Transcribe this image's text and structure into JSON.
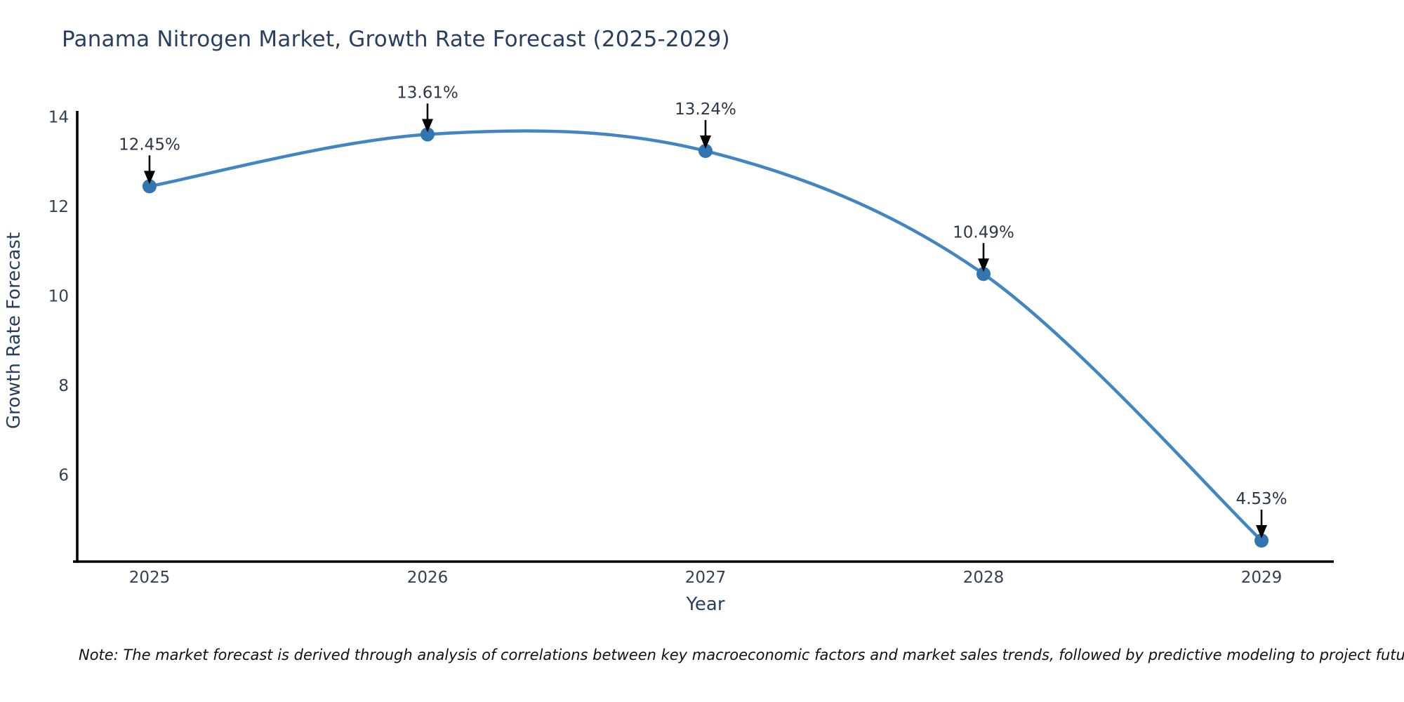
{
  "note": "Note: The market forecast is derived through analysis of correlations between key macroeconomic factors and market sales trends, followed by predictive modeling to project future sales.",
  "chart_data": {
    "type": "line",
    "title": "Panama Nitrogen Market, Growth Rate Forecast (2025-2029)",
    "xlabel": "Year",
    "ylabel": "Growth Rate Forecast",
    "x": [
      2025,
      2026,
      2027,
      2028,
      2029
    ],
    "values": [
      12.45,
      13.61,
      13.24,
      10.49,
      4.53
    ],
    "point_labels": [
      "12.45%",
      "13.61%",
      "13.24%",
      "10.49%",
      "4.53%"
    ],
    "xticks": [
      "2025",
      "2026",
      "2027",
      "2028",
      "2029"
    ],
    "yticks": [
      6,
      8,
      10,
      12,
      14
    ],
    "xlim": [
      2024.74,
      2029.26
    ],
    "ylim": [
      4.06,
      14.135
    ],
    "grid": false,
    "legend": "none",
    "line_style": "smooth-spline",
    "annotation_arrow": "black-down-arrow",
    "colors": {
      "line": "#4186c3",
      "marker": "#3276b1",
      "axis_spine": "#000000",
      "tick_label": "#333f52",
      "annotation_text": "#2e3747",
      "title_text": "#2a3f5f"
    }
  }
}
